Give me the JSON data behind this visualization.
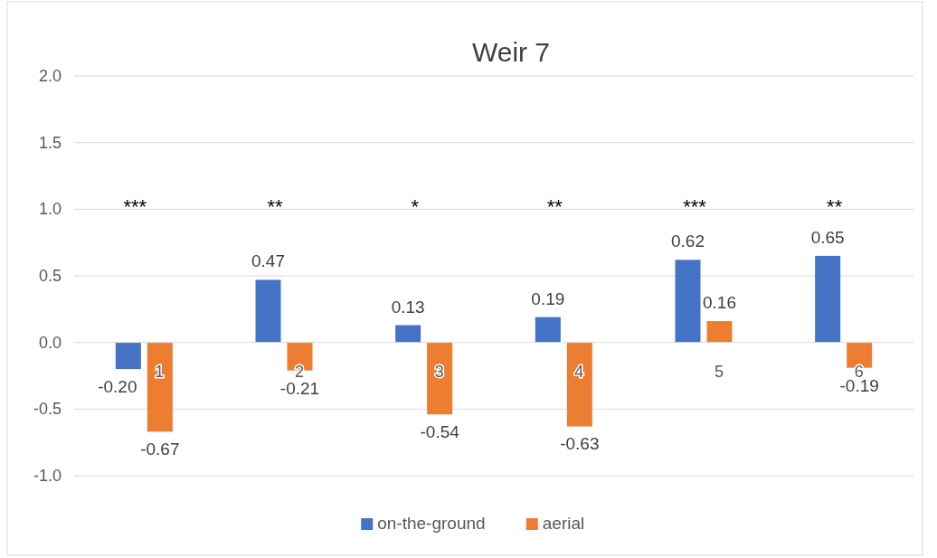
{
  "chart_data": {
    "type": "bar",
    "title": "Weir 7",
    "categories": [
      "1",
      "2",
      "3",
      "4",
      "5",
      "6"
    ],
    "series": [
      {
        "name": "on-the-ground",
        "color": "#4472c4",
        "values": [
          -0.2,
          0.47,
          0.13,
          0.19,
          0.62,
          0.65
        ],
        "value_labels": [
          "-0.20",
          "0.47",
          "0.13",
          "0.19",
          "0.62",
          "0.65"
        ]
      },
      {
        "name": "aerial",
        "color": "#ed7d31",
        "values": [
          -0.67,
          -0.21,
          -0.54,
          -0.63,
          0.16,
          -0.19
        ],
        "value_labels": [
          "-0.67",
          "-0.21",
          "-0.54",
          "-0.63",
          "0.16",
          "-0.19"
        ]
      }
    ],
    "ylim": [
      -1.0,
      2.0
    ],
    "yticks": [
      {
        "value": -1,
        "label": "-1.0"
      },
      {
        "value": -0.5,
        "label": "-0.5"
      },
      {
        "value": 0,
        "label": "0.0"
      },
      {
        "value": 0.5,
        "label": "0.5"
      },
      {
        "value": 1,
        "label": "1.0"
      },
      {
        "value": 1.5,
        "label": "1.5"
      },
      {
        "value": 2,
        "label": "2.0"
      }
    ],
    "grid": "y",
    "legend": "bottom",
    "annotations": [
      "***",
      "**",
      "*",
      "**",
      "***",
      "**"
    ]
  }
}
